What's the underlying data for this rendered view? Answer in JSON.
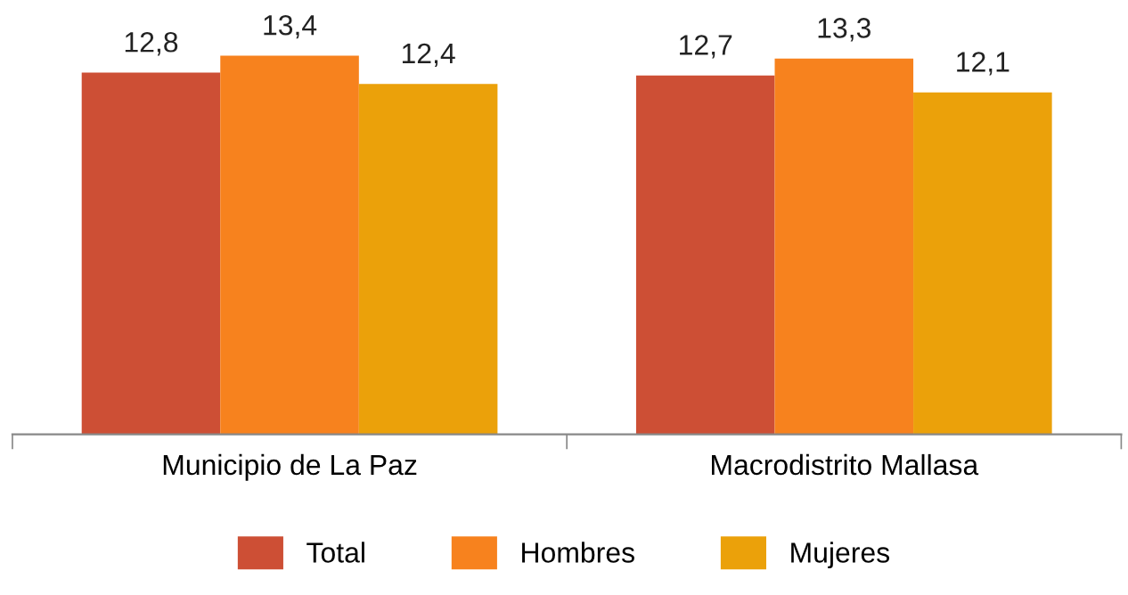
{
  "chart_data": {
    "type": "bar",
    "categories": [
      "Municipio de La Paz",
      "Macrodistrito Mallasa"
    ],
    "series": [
      {
        "name": "Total",
        "color": "#cd4f35",
        "values": [
          12.8,
          12.7
        ],
        "value_labels": [
          "12,8",
          "12,7"
        ]
      },
      {
        "name": "Hombres",
        "color": "#f7821e",
        "values": [
          13.4,
          13.3
        ],
        "value_labels": [
          "13,4",
          "13,3"
        ]
      },
      {
        "name": "Mujeres",
        "color": "#eba10a",
        "values": [
          12.4,
          12.1
        ],
        "value_labels": [
          "12,4",
          "12,1"
        ]
      }
    ],
    "legend": "bottom",
    "tick_labels": "x"
  }
}
